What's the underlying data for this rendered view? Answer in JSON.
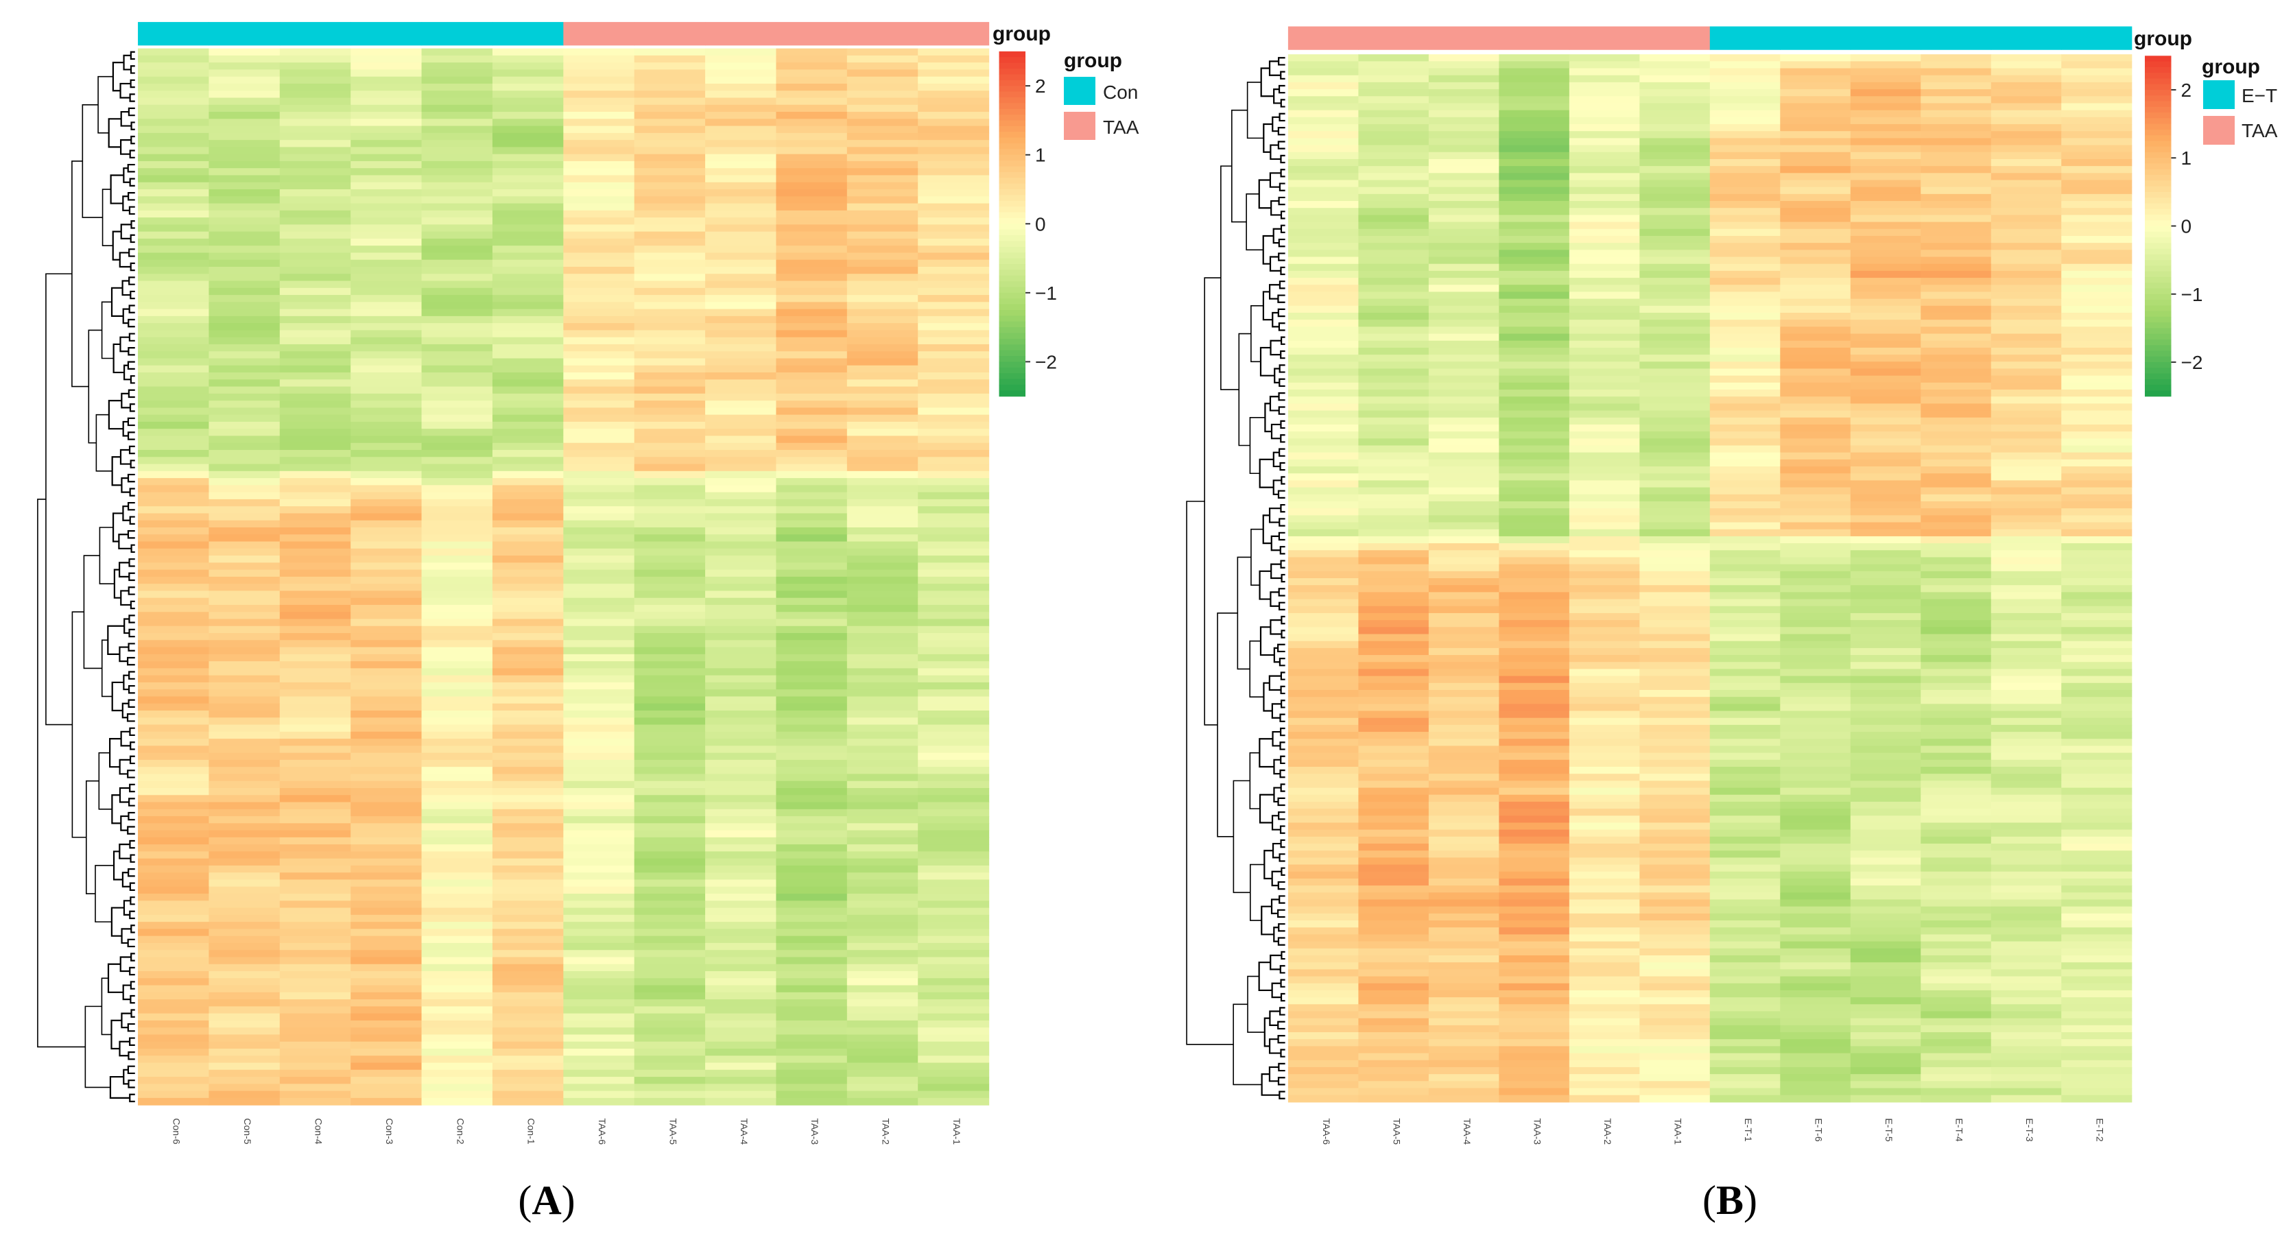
{
  "colors": {
    "con": "#00CED8",
    "taa": "#F89A90",
    "et": "#00CED8",
    "low": "#1FA24A",
    "mid": "#FFFFBF",
    "high": "#EE3A2C"
  },
  "chart_data": [
    {
      "type": "heatmap",
      "panel_label": "A",
      "title": "",
      "xlabel": "",
      "ylabel": "",
      "columns": [
        "Con-6",
        "Con-5",
        "Con-4",
        "Con-3",
        "Con-2",
        "Con-1",
        "TAA-6",
        "TAA-5",
        "TAA-4",
        "TAA-3",
        "TAA-2",
        "TAA-1"
      ],
      "column_groups": [
        "Con",
        "Con",
        "Con",
        "Con",
        "Con",
        "Con",
        "TAA",
        "TAA",
        "TAA",
        "TAA",
        "TAA",
        "TAA"
      ],
      "group_annotation_title": "group",
      "group_legend": [
        {
          "label": "Con",
          "color": "#00CED8"
        },
        {
          "label": "TAA",
          "color": "#F89A90"
        }
      ],
      "color_scale": {
        "title": "group",
        "min": -2.5,
        "max": 2.5,
        "ticks": [
          2,
          1,
          0,
          -1,
          -2
        ],
        "tick_labels": [
          "2",
          "1",
          "0",
          "−1",
          "−2"
        ]
      },
      "cluster_pattern": [
        {
          "rows": 0.4,
          "means": [
            -0.7,
            -0.7,
            -0.6,
            -0.6,
            -0.7,
            -0.7,
            0.3,
            0.6,
            0.5,
            0.8,
            0.6,
            0.5
          ]
        },
        {
          "rows": 0.6,
          "means": [
            0.8,
            0.8,
            0.8,
            0.8,
            0.1,
            0.6,
            -0.3,
            -0.8,
            -0.5,
            -0.9,
            -0.6,
            -0.6
          ]
        }
      ]
    },
    {
      "type": "heatmap",
      "panel_label": "B",
      "title": "",
      "xlabel": "",
      "ylabel": "",
      "columns": [
        "TAA-6",
        "TAA-5",
        "TAA-4",
        "TAA-3",
        "TAA-2",
        "TAA-1",
        "E-T-1",
        "E-T-6",
        "E-T-5",
        "E-T-4",
        "E-T-3",
        "E-T-2"
      ],
      "column_groups": [
        "TAA",
        "TAA",
        "TAA",
        "TAA",
        "TAA",
        "TAA",
        "E−T",
        "E−T",
        "E−T",
        "E−T",
        "E−T",
        "E−T"
      ],
      "group_annotation_title": "group",
      "group_legend": [
        {
          "label": "E−T",
          "color": "#00CED8"
        },
        {
          "label": "TAA",
          "color": "#F89A90"
        }
      ],
      "color_scale": {
        "title": "group",
        "min": -2.5,
        "max": 2.5,
        "ticks": [
          2,
          1,
          0,
          -1,
          -2
        ],
        "tick_labels": [
          "2",
          "1",
          "0",
          "−1",
          "−2"
        ]
      },
      "cluster_pattern": [
        {
          "rows": 0.46,
          "means": [
            -0.2,
            -0.6,
            -0.4,
            -1.0,
            -0.3,
            -0.6,
            0.4,
            0.8,
            0.9,
            0.8,
            0.6,
            0.4
          ]
        },
        {
          "rows": 0.54,
          "means": [
            0.6,
            1.0,
            0.7,
            1.2,
            0.3,
            0.4,
            -0.6,
            -0.8,
            -0.7,
            -0.7,
            -0.5,
            -0.5
          ]
        }
      ]
    }
  ]
}
